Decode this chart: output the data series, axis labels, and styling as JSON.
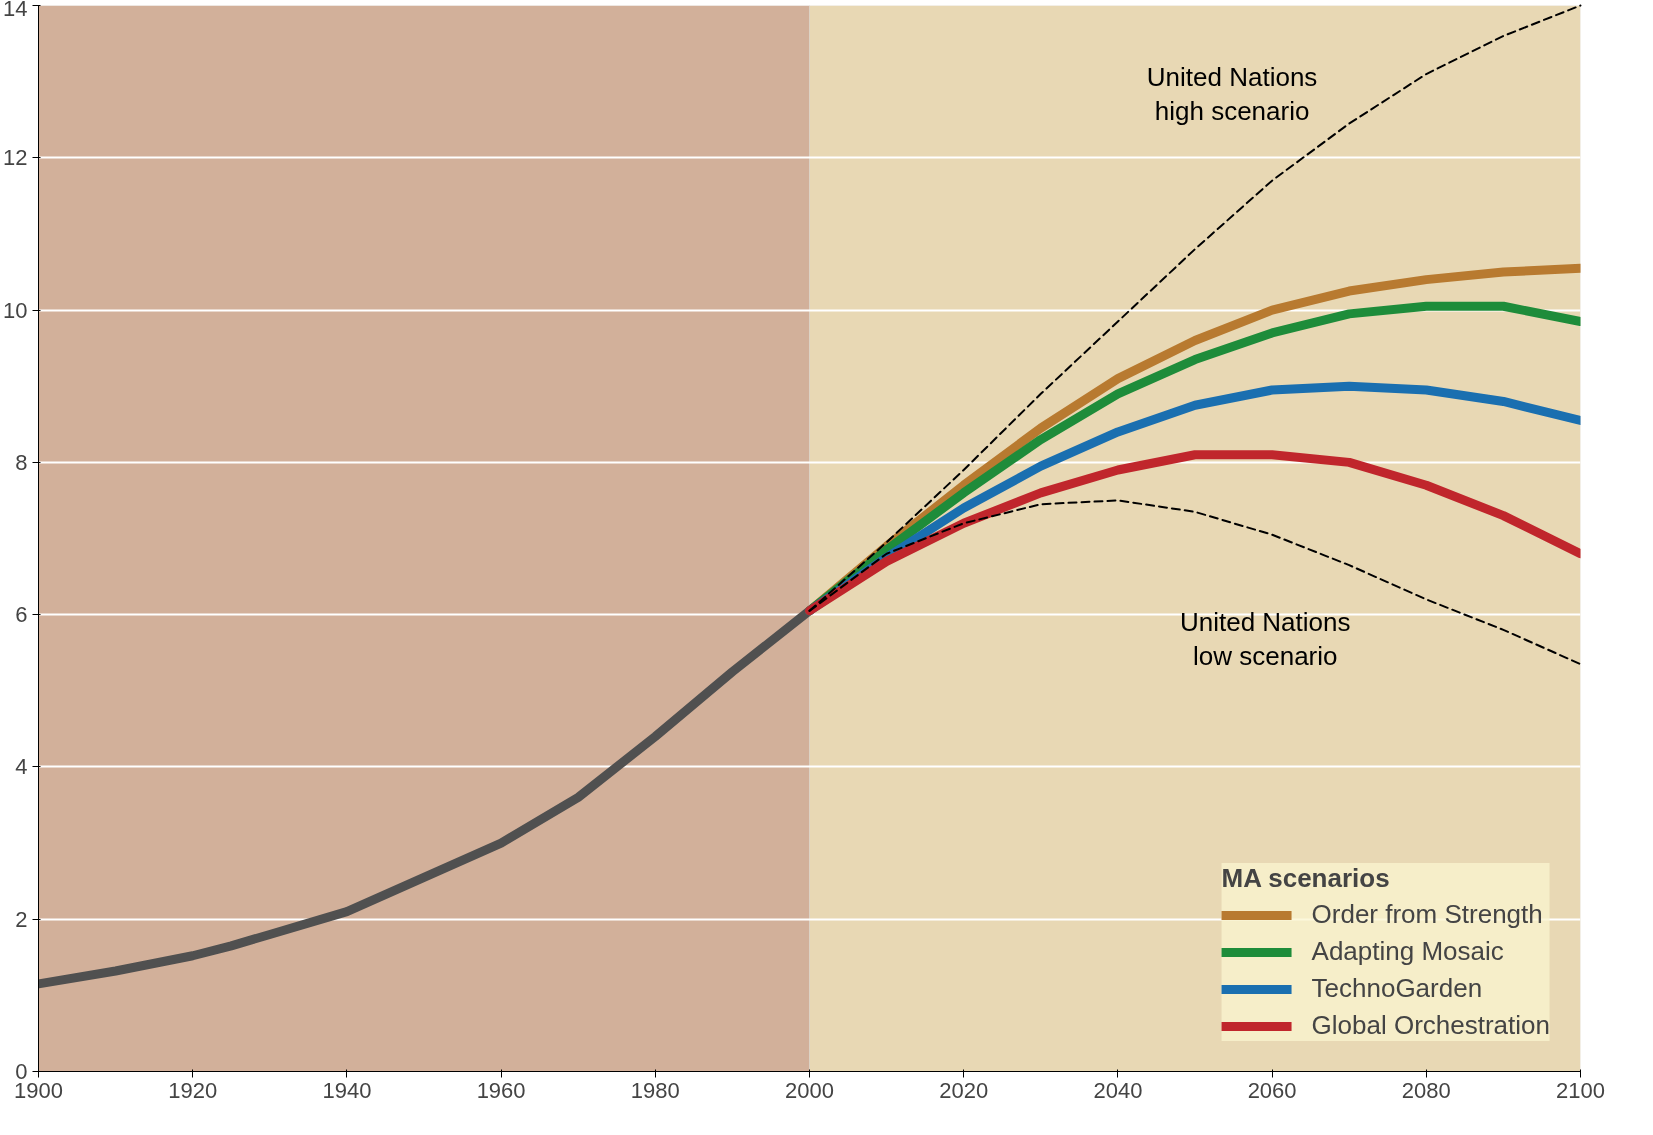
{
  "chart_data": {
    "type": "line",
    "xlim": [
      1900,
      2100
    ],
    "ylim": [
      0,
      14
    ],
    "xticks": [
      1900,
      1920,
      1940,
      1960,
      1980,
      2000,
      2020,
      2040,
      2060,
      2080,
      2100
    ],
    "yticks": [
      0,
      2,
      4,
      6,
      8,
      10,
      12,
      14
    ],
    "grid": "y",
    "legend": "bottom right",
    "legend_title": "MA scenarios",
    "bands": [
      {
        "axis": "x",
        "from": 1900,
        "to": 2000,
        "color": "#d2b09a"
      },
      {
        "axis": "x",
        "from": 2000,
        "to": 2100,
        "color": "#e8d8b4"
      }
    ],
    "series": [
      {
        "color": "#505050",
        "x": [
          1900,
          1910,
          1920,
          1925,
          1930,
          1940,
          1950,
          1960,
          1970,
          1980,
          1990,
          2000
        ],
        "values": [
          1.15,
          1.32,
          1.52,
          1.65,
          1.8,
          2.1,
          2.55,
          3.0,
          3.6,
          4.4,
          5.25,
          6.05
        ]
      },
      {
        "color": "#000000",
        "line_style": "dashed",
        "x": [
          2000,
          2010,
          2020,
          2030,
          2040,
          2050,
          2060,
          2070,
          2080,
          2090,
          2100
        ],
        "values": [
          6.05,
          6.95,
          7.9,
          8.9,
          9.85,
          10.8,
          11.7,
          12.45,
          13.1,
          13.6,
          14.0
        ]
      },
      {
        "color": "#000000",
        "line_style": "dashed",
        "x": [
          2000,
          2010,
          2020,
          2030,
          2040,
          2050,
          2060,
          2070,
          2080,
          2090,
          2100
        ],
        "values": [
          6.05,
          6.8,
          7.2,
          7.45,
          7.5,
          7.35,
          7.05,
          6.65,
          6.2,
          5.8,
          5.35
        ]
      },
      {
        "name": "Order from Strength",
        "color": "#b87a30",
        "x": [
          2000,
          2010,
          2020,
          2030,
          2040,
          2050,
          2060,
          2070,
          2080,
          2090,
          2100
        ],
        "values": [
          6.05,
          6.9,
          7.7,
          8.45,
          9.1,
          9.6,
          10.0,
          10.25,
          10.4,
          10.5,
          10.55
        ]
      },
      {
        "name": "Adapting Mosaic",
        "color": "#1e8c3a",
        "x": [
          2000,
          2010,
          2020,
          2030,
          2040,
          2050,
          2060,
          2070,
          2080,
          2090,
          2100
        ],
        "values": [
          6.05,
          6.85,
          7.6,
          8.3,
          8.9,
          9.35,
          9.7,
          9.95,
          10.05,
          10.05,
          9.85
        ]
      },
      {
        "name": "TechnoGarden",
        "color": "#1a6fb0",
        "x": [
          2000,
          2010,
          2020,
          2030,
          2040,
          2050,
          2060,
          2070,
          2080,
          2090,
          2100
        ],
        "values": [
          6.05,
          6.75,
          7.4,
          7.95,
          8.4,
          8.75,
          8.95,
          9.0,
          8.95,
          8.8,
          8.55
        ]
      },
      {
        "name": "Global Orchestration",
        "color": "#c0262c",
        "x": [
          2000,
          2010,
          2020,
          2030,
          2040,
          2050,
          2060,
          2070,
          2080,
          2090,
          2100
        ],
        "values": [
          6.05,
          6.7,
          7.2,
          7.6,
          7.9,
          8.1,
          8.1,
          8.0,
          7.7,
          7.3,
          6.8
        ]
      }
    ],
    "annotations": [
      {
        "text": "United Nations\nhigh scenario",
        "x": 2060,
        "y": 11.7
      },
      {
        "text": "United Nations\nlow scenario",
        "x": 2063,
        "y": 6.95
      }
    ]
  }
}
